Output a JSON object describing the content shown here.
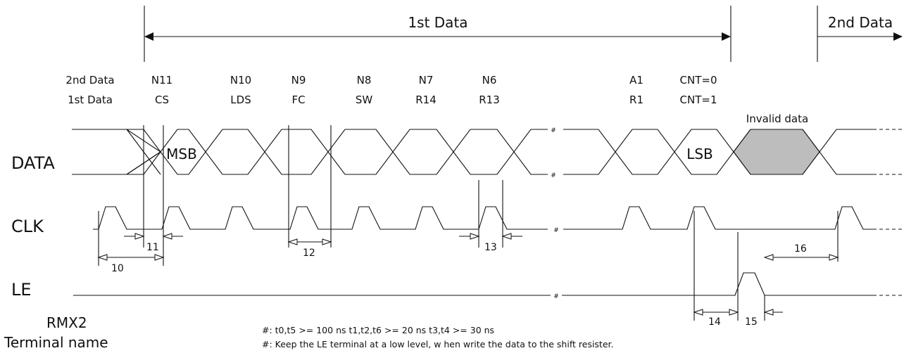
{
  "header": {
    "first_data": "1st Data",
    "second_data": "2nd Data"
  },
  "bit_labels": {
    "row1": [
      "2nd Data",
      "N11",
      "N10",
      "N9",
      "N8",
      "N7",
      "N6",
      "A1",
      "CNT=0"
    ],
    "row2": [
      "1st Data",
      "CS",
      "LDS",
      "FC",
      "SW",
      "R14",
      "R13",
      "R1",
      "CNT=1"
    ]
  },
  "signals": {
    "data": "DATA",
    "clk": "CLK",
    "le": "LE"
  },
  "data_labels": {
    "msb": "MSB",
    "lsb": "LSB",
    "invalid": "Invalid data"
  },
  "timing": [
    "10",
    "11",
    "12",
    "13",
    "14",
    "15",
    "16"
  ],
  "break_mark": "#",
  "notes": [
    "#: t0,t5 >= 100 ns t1,t2,t6 >= 20 ns t3,t4 >= 30 ns",
    "#: Keep the LE terminal at a low level, w hen write the data to the shift resister."
  ],
  "terminal": {
    "model": "RMX2",
    "label": "Terminal name"
  }
}
